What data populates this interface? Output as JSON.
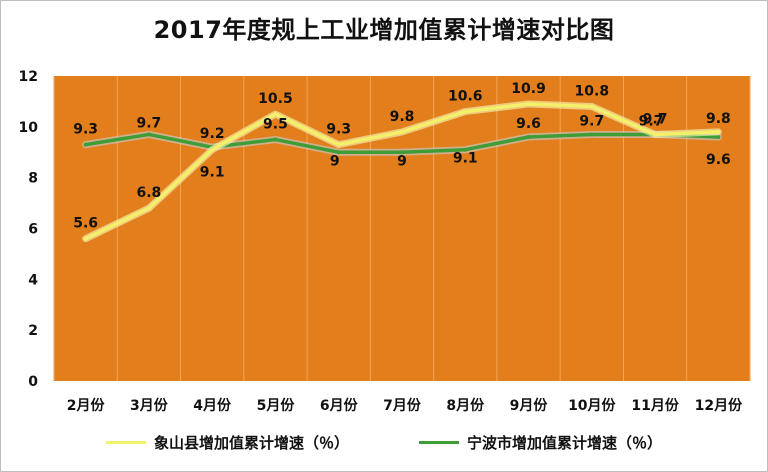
{
  "chart_data": {
    "type": "line",
    "title": "2017年度规上工业增加值累计增速对比图",
    "categories": [
      "2月份",
      "3月份",
      "4月份",
      "5月份",
      "6月份",
      "7月份",
      "8月份",
      "9月份",
      "10月份",
      "11月份",
      "12月份"
    ],
    "series": [
      {
        "name": "象山县增加值累计增速（％）",
        "color": "#f5f06a",
        "values": [
          5.6,
          6.8,
          9.1,
          10.5,
          9.3,
          9.8,
          10.6,
          10.9,
          10.8,
          9.7,
          9.8
        ]
      },
      {
        "name": "宁波市增加值累计增速（％）",
        "color": "#3f9d38",
        "values": [
          9.3,
          9.7,
          9.2,
          9.5,
          9,
          9,
          9.1,
          9.6,
          9.7,
          9.7,
          9.6
        ]
      }
    ],
    "ylim": [
      0,
      12
    ],
    "yticks": [
      0,
      2,
      4,
      6,
      8,
      10,
      12
    ],
    "grid": true,
    "legend": "bottom",
    "plot_background": "#e37e1c"
  }
}
